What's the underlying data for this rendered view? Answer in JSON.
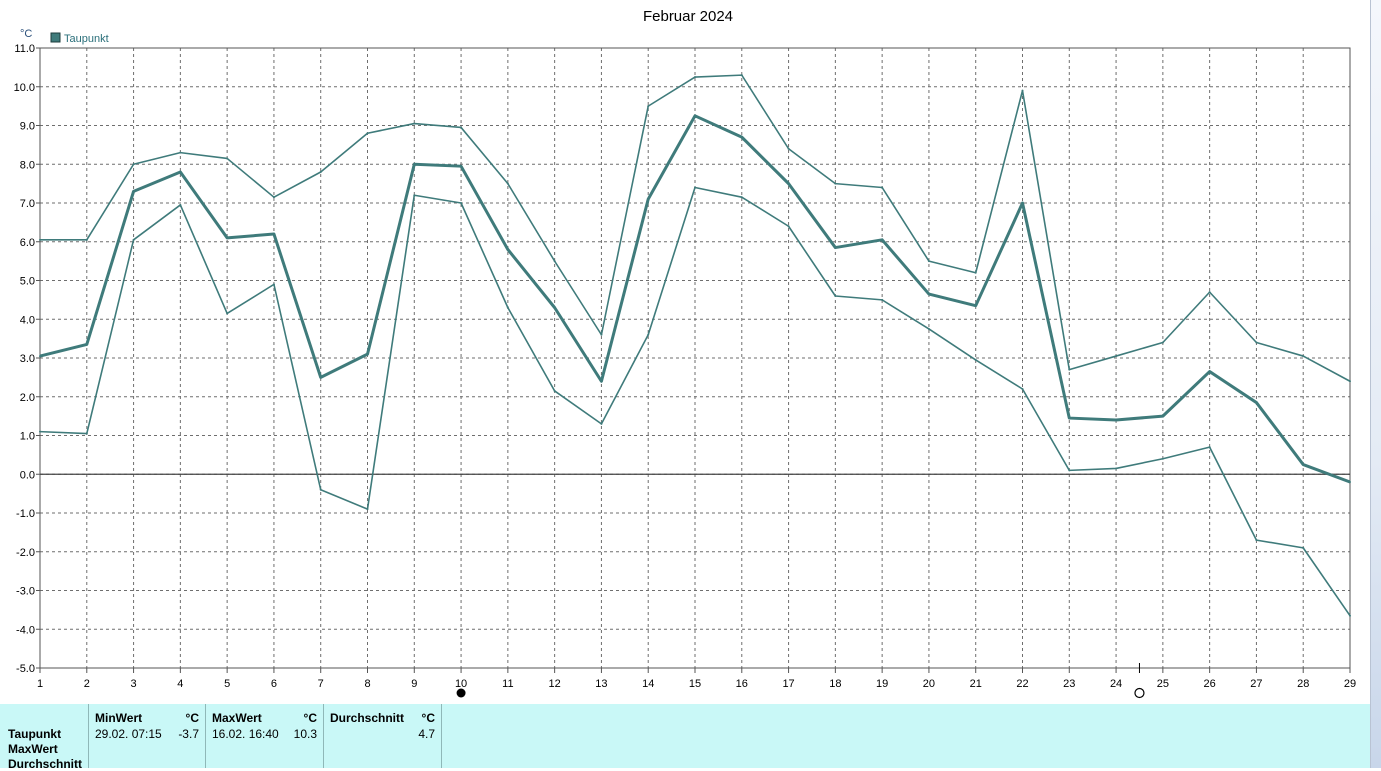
{
  "chart_data": {
    "type": "line",
    "title": "Februar 2024",
    "yunit": "°C",
    "ylim": [
      -5.0,
      11.0
    ],
    "yticks": [
      "11.0",
      "10.0",
      "9.0",
      "8.0",
      "7.0",
      "6.0",
      "5.0",
      "4.0",
      "3.0",
      "2.0",
      "1.0",
      "0.0",
      "-1.0",
      "-2.0",
      "-3.0",
      "-4.0",
      "-5.0"
    ],
    "x": [
      1,
      2,
      3,
      4,
      5,
      6,
      7,
      8,
      9,
      10,
      11,
      12,
      13,
      14,
      15,
      16,
      17,
      18,
      19,
      20,
      21,
      22,
      23,
      24,
      25,
      26,
      27,
      28,
      29
    ],
    "xticks": [
      "1",
      "2",
      "3",
      "4",
      "5",
      "6",
      "7",
      "8",
      "9",
      "10",
      "11",
      "12",
      "13",
      "14",
      "15",
      "16",
      "17",
      "18",
      "19",
      "20",
      "21",
      "22",
      "23",
      "24",
      "25",
      "26",
      "27",
      "28",
      "29"
    ],
    "grid": true,
    "legend": "top-left",
    "series": [
      {
        "name": "Taupunkt",
        "style": "thick",
        "values": [
          3.05,
          3.35,
          7.3,
          7.8,
          6.1,
          6.2,
          2.5,
          3.1,
          8.0,
          7.95,
          5.8,
          4.3,
          2.4,
          7.1,
          9.25,
          8.7,
          7.5,
          5.85,
          6.05,
          4.65,
          4.35,
          7.0,
          1.45,
          1.4,
          1.5,
          2.65,
          1.85,
          0.25,
          -0.2
        ]
      },
      {
        "values": [
          6.05,
          6.05,
          8.0,
          8.3,
          8.15,
          7.15,
          7.8,
          8.8,
          9.05,
          8.95,
          7.5,
          5.5,
          3.6,
          9.5,
          10.25,
          10.3,
          8.4,
          7.5,
          7.4,
          5.5,
          5.2,
          9.9,
          2.7,
          3.05,
          3.4,
          4.7,
          3.4,
          3.05,
          2.4
        ]
      },
      {
        "values": [
          1.1,
          1.05,
          6.05,
          6.95,
          4.15,
          4.9,
          -0.4,
          -0.9,
          7.2,
          7.0,
          4.3,
          2.15,
          1.3,
          3.6,
          7.4,
          7.15,
          6.4,
          4.6,
          4.5,
          3.75,
          2.95,
          2.2,
          0.1,
          0.15,
          0.4,
          0.7,
          -1.7,
          -1.9,
          -3.65
        ]
      }
    ],
    "colors": {
      "line": "#3f7b7b",
      "grid": "#6e6e6e",
      "axis": "#555555",
      "legend_box": "#3f7b7b"
    },
    "markers": [
      {
        "x": 10,
        "symbol": "full-moon-dot"
      },
      {
        "x": 24.5,
        "symbol": "new-moon-circle"
      }
    ]
  },
  "stats": {
    "row_labels": [
      "Taupunkt",
      "MaxWert",
      "Durchschnitt"
    ],
    "columns": [
      {
        "header": "MinWert",
        "unit": "°C",
        "time": "29.02.  07:15",
        "value": "-3.7"
      },
      {
        "header": "MaxWert",
        "unit": "°C",
        "time": "16.02.  16:40",
        "value": "10.3"
      },
      {
        "header": "Durchschnitt",
        "unit": "°C",
        "time": "",
        "value": "4.7"
      }
    ]
  }
}
